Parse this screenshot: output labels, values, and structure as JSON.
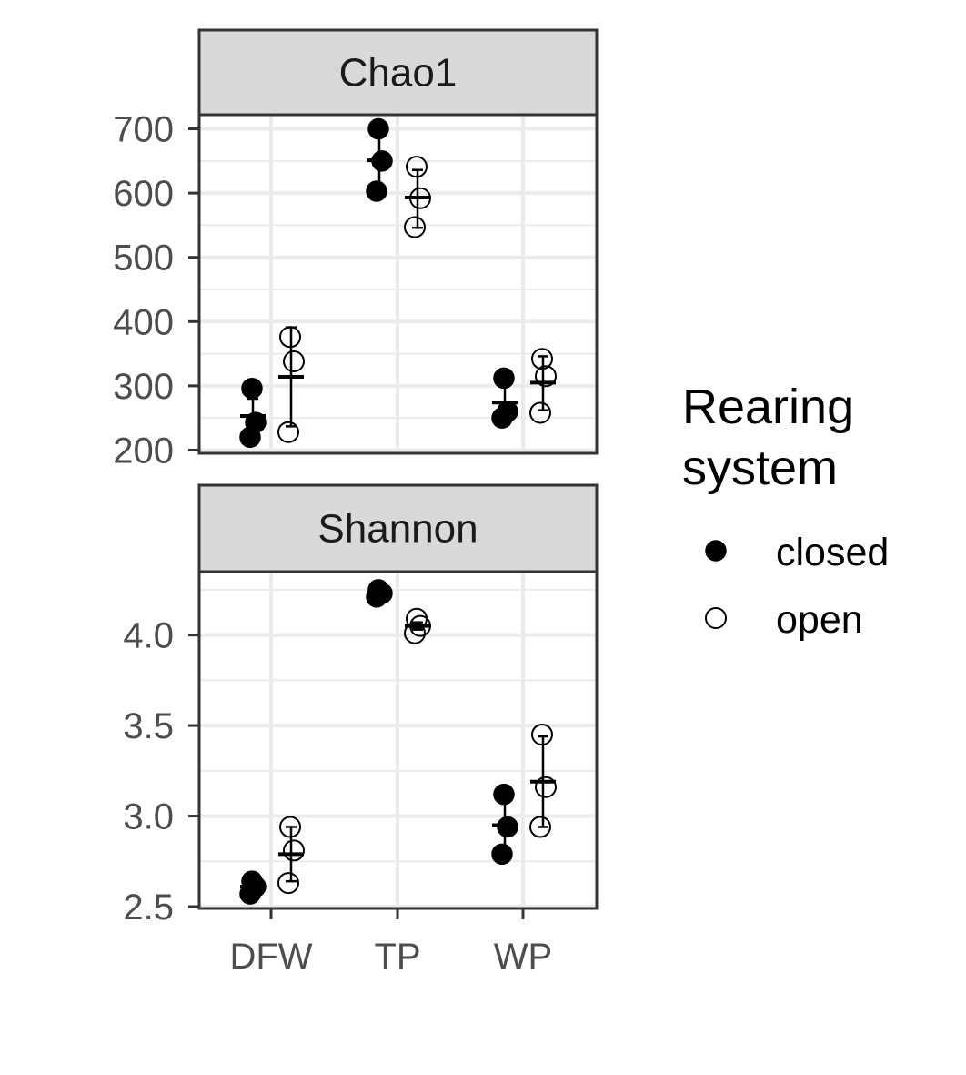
{
  "chart_data": {
    "type": "scatter",
    "categories": [
      "DFW",
      "TP",
      "WP"
    ],
    "groups": [
      "closed",
      "open"
    ],
    "legend": {
      "title_lines": [
        "Rearing",
        "system"
      ],
      "position": "right",
      "entries": [
        {
          "label": "closed",
          "marker": "filled-circle"
        },
        {
          "label": "open",
          "marker": "open-circle"
        }
      ]
    },
    "colors": {
      "strip_fill": "#d9d9d9",
      "panel_border": "#333333",
      "grid": "#ebebeb",
      "points": "#000000",
      "tick_text": "#4d4d4d"
    },
    "grid": true,
    "panels": [
      {
        "strip": "Chao1",
        "ylim": [
          195,
          722
        ],
        "yticks": [
          200,
          300,
          400,
          500,
          600,
          700
        ],
        "ytick_labels": [
          "200",
          "300",
          "400",
          "500",
          "600",
          "700"
        ],
        "series": [
          {
            "name": "closed",
            "points": [
              {
                "category": "DFW",
                "values": [
                  220,
                  243,
                  296
                ],
                "mean": 253,
                "sd_low": 227,
                "sd_high": 280
              },
              {
                "category": "TP",
                "values": [
                  603,
                  650,
                  700
                ],
                "mean": 651,
                "sd_low": 604,
                "sd_high": 698
              },
              {
                "category": "WP",
                "values": [
                  250,
                  260,
                  312
                ],
                "mean": 274,
                "sd_low": 240,
                "sd_high": 308
              }
            ]
          },
          {
            "name": "open",
            "points": [
              {
                "category": "DFW",
                "values": [
                  228,
                  338,
                  376
                ],
                "mean": 314,
                "sd_low": 237,
                "sd_high": 391
              },
              {
                "category": "TP",
                "values": [
                  547,
                  592,
                  641
                ],
                "mean": 593,
                "sd_low": 546,
                "sd_high": 636
              },
              {
                "category": "WP",
                "values": [
                  258,
                  315,
                  342
                ],
                "mean": 305,
                "sd_low": 262,
                "sd_high": 346
              }
            ]
          }
        ]
      },
      {
        "strip": "Shannon",
        "ylim": [
          2.49,
          4.35
        ],
        "yticks": [
          2.5,
          3.0,
          3.5,
          4.0
        ],
        "ytick_labels": [
          "2.5",
          "3.0",
          "3.5",
          "4.0"
        ],
        "series": [
          {
            "name": "closed",
            "points": [
              {
                "category": "DFW",
                "values": [
                  2.57,
                  2.61,
                  2.64
                ],
                "mean": 2.61,
                "sd_low": 2.57,
                "sd_high": 2.64
              },
              {
                "category": "TP",
                "values": [
                  4.21,
                  4.23,
                  4.25
                ],
                "mean": 4.24,
                "sd_low": 4.22,
                "sd_high": 4.26
              },
              {
                "category": "WP",
                "values": [
                  2.79,
                  2.94,
                  3.12
                ],
                "mean": 2.95,
                "sd_low": 2.78,
                "sd_high": 3.12
              }
            ]
          },
          {
            "name": "open",
            "points": [
              {
                "category": "DFW",
                "values": [
                  2.63,
                  2.81,
                  2.94
                ],
                "mean": 2.79,
                "sd_low": 2.64,
                "sd_high": 2.94
              },
              {
                "category": "TP",
                "values": [
                  4.01,
                  4.05,
                  4.09
                ],
                "mean": 4.05,
                "sd_low": 4.03,
                "sd_high": 4.07
              },
              {
                "category": "WP",
                "values": [
                  2.94,
                  3.16,
                  3.45
                ],
                "mean": 3.19,
                "sd_low": 2.94,
                "sd_high": 3.44
              }
            ]
          }
        ]
      }
    ]
  }
}
